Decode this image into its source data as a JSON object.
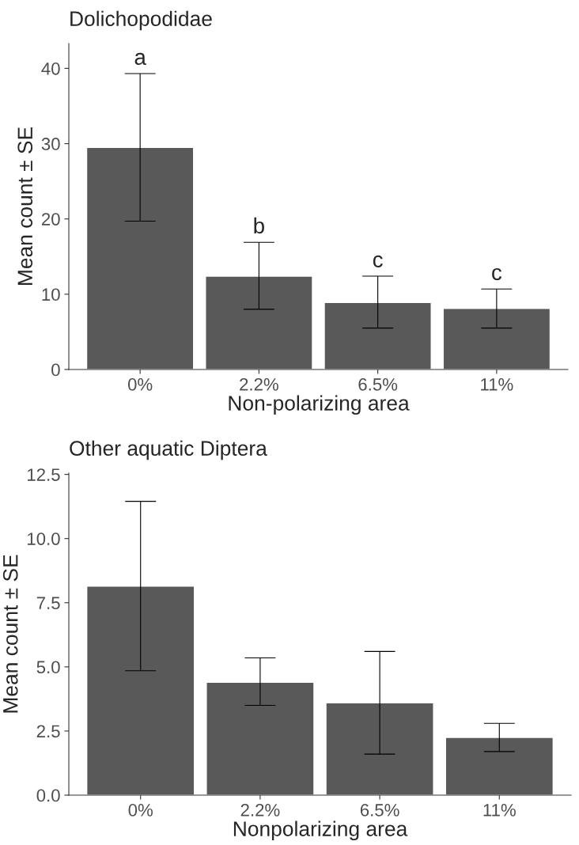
{
  "chart_data": [
    {
      "type": "bar",
      "title": "Dolichopodidae",
      "xlabel": "Non-polarizing area",
      "ylabel": "Mean count ± SE",
      "categories": [
        "0%",
        "2.2%",
        "6.5%",
        "11%"
      ],
      "series": [
        {
          "color": "#595959",
          "values": [
            29.5,
            12.4,
            8.9,
            8.1
          ],
          "errors": [
            [
              19.7,
              39.3
            ],
            [
              8.0,
              16.9
            ],
            [
              5.5,
              12.4
            ],
            [
              5.5,
              10.7
            ]
          ]
        }
      ],
      "ylim": [
        0,
        43.3
      ],
      "yticks": [
        0,
        10,
        20,
        30,
        40
      ],
      "grid": false,
      "legend": false,
      "annotations": [
        {
          "text": "a",
          "x": "0%",
          "y": 39.3
        },
        {
          "text": "b",
          "x": "2.2%",
          "y": 16.9
        },
        {
          "text": "c",
          "x": "6.5%",
          "y": 12.4
        },
        {
          "text": "c",
          "x": "11%",
          "y": 10.7
        }
      ]
    },
    {
      "type": "bar",
      "title": "Other aquatic Diptera",
      "xlabel": "Nonpolarizing area",
      "ylabel": "Mean count ± SE",
      "categories": [
        "0%",
        "2.2%",
        "6.5%",
        "11%"
      ],
      "series": [
        {
          "color": "#595959",
          "values": [
            8.15,
            4.4,
            3.6,
            2.25
          ],
          "errors": [
            [
              4.85,
              11.45
            ],
            [
              3.5,
              5.35
            ],
            [
              1.6,
              5.6
            ],
            [
              1.7,
              2.8
            ]
          ]
        }
      ],
      "ylim": [
        0,
        12.55
      ],
      "yticks": [
        {
          "value": 0,
          "label": "0.0"
        },
        {
          "value": 2.5,
          "label": "2.5"
        },
        {
          "value": 5,
          "label": "5.0"
        },
        {
          "value": 7.5,
          "label": "7.5"
        },
        {
          "value": 10,
          "label": "10.0"
        },
        {
          "value": 12.5,
          "label": "12.5"
        }
      ],
      "grid": false,
      "legend": false
    }
  ]
}
